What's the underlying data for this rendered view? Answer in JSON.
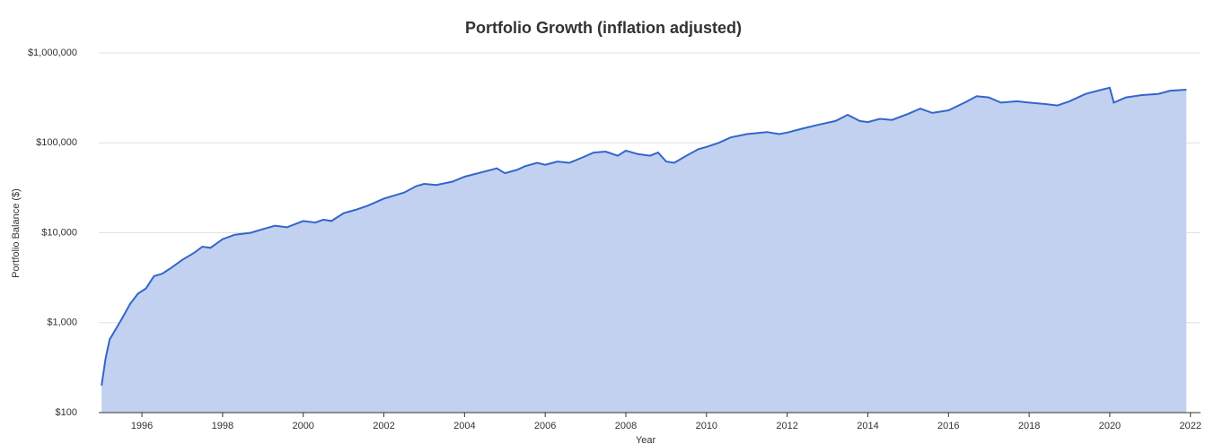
{
  "chart_data": {
    "type": "area",
    "title": "Portfolio Growth (inflation adjusted)",
    "x_label": "Year",
    "y_label": "Portfolio Balance ($)",
    "log_scale": true,
    "grid": true,
    "color": "#3366cc",
    "fill_color": "#c2d1f0",
    "xlim": [
      1994.93,
      2022.25
    ],
    "xticks": [
      1996,
      1998,
      2000,
      2002,
      2004,
      2006,
      2008,
      2010,
      2012,
      2014,
      2016,
      2018,
      2020,
      2022
    ],
    "ylim": [
      100,
      1000000
    ],
    "yticks": [
      {
        "value": 100,
        "label": "$100"
      },
      {
        "value": 1000,
        "label": "$1,000"
      },
      {
        "value": 10000,
        "label": "$10,000"
      },
      {
        "value": 100000,
        "label": "$100,000"
      },
      {
        "value": 1000000,
        "label": "$1,000,000"
      }
    ],
    "x": [
      1995.0,
      1995.1,
      1995.2,
      1995.5,
      1995.7,
      1995.9,
      1996.1,
      1996.3,
      1996.5,
      1996.7,
      1997.0,
      1997.3,
      1997.5,
      1997.7,
      1998.0,
      1998.3,
      1998.7,
      1999.0,
      1999.3,
      1999.6,
      1999.8,
      2000.0,
      2000.3,
      2000.5,
      2000.7,
      2001.0,
      2001.3,
      2001.6,
      2002.0,
      2002.5,
      2002.8,
      2003.0,
      2003.3,
      2003.7,
      2004.0,
      2004.5,
      2004.8,
      2005.0,
      2005.3,
      2005.5,
      2005.8,
      2006.0,
      2006.3,
      2006.6,
      2006.9,
      2007.2,
      2007.5,
      2007.8,
      2008.0,
      2008.3,
      2008.6,
      2008.8,
      2009.0,
      2009.2,
      2009.5,
      2009.8,
      2010.0,
      2010.3,
      2010.6,
      2011.0,
      2011.5,
      2011.8,
      2012.0,
      2012.4,
      2012.8,
      2013.2,
      2013.5,
      2013.8,
      2014.0,
      2014.3,
      2014.6,
      2015.0,
      2015.3,
      2015.6,
      2016.0,
      2016.4,
      2016.7,
      2017.0,
      2017.3,
      2017.7,
      2018.0,
      2018.4,
      2018.7,
      2019.0,
      2019.4,
      2019.8,
      2020.0,
      2020.1,
      2020.4,
      2020.8,
      2021.2,
      2021.5,
      2021.9
    ],
    "values": [
      200,
      400,
      650,
      1100,
      1600,
      2100,
      2400,
      3300,
      3500,
      4000,
      5000,
      6000,
      7000,
      6800,
      8500,
      9500,
      10000,
      11000,
      12000,
      11500,
      12500,
      13500,
      13000,
      14000,
      13500,
      16500,
      18000,
      20000,
      24000,
      28000,
      33000,
      35000,
      34000,
      37000,
      42000,
      48000,
      52000,
      46000,
      50000,
      55000,
      60000,
      57000,
      62000,
      60000,
      68000,
      78000,
      80000,
      72000,
      82000,
      75000,
      72000,
      78000,
      62000,
      60000,
      72000,
      85000,
      90000,
      100000,
      115000,
      125000,
      132000,
      125000,
      130000,
      145000,
      160000,
      175000,
      205000,
      175000,
      170000,
      185000,
      180000,
      210000,
      240000,
      215000,
      230000,
      280000,
      330000,
      320000,
      280000,
      290000,
      280000,
      270000,
      260000,
      290000,
      350000,
      390000,
      410000,
      280000,
      320000,
      340000,
      350000,
      380000,
      390000
    ]
  }
}
